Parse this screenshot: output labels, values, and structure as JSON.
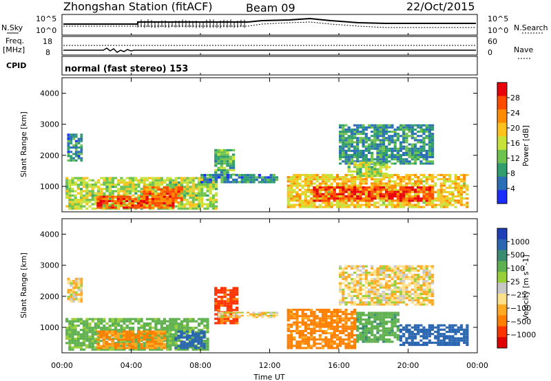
{
  "header": {
    "station": "Zhongshan Station (fitACF)",
    "beam": "Beam 09",
    "date": "22/Oct/2015"
  },
  "top_panels": {
    "nsky_label": "N.Sky",
    "nsearch_label": "N.Search",
    "freq_label_1": "Freq.",
    "freq_label_2": "[MHz]",
    "nave_label": "Nave",
    "cpid_label": "CPID",
    "cpid_text": "normal (fast stereo) 153",
    "noise_left_ticks": [
      "10^5",
      "10^0"
    ],
    "noise_right_ticks": [
      "10^5",
      "10^0"
    ],
    "freq_left_ticks": [
      "18",
      "8"
    ],
    "freq_right_ticks": [
      "60",
      "0"
    ]
  },
  "power_colorbar": {
    "label": "Power [dB]",
    "ticks": [
      "28",
      "24",
      "20",
      "16",
      "12",
      "8",
      "4"
    ],
    "colors": [
      "#e8000b",
      "#ff4a00",
      "#ff8c00",
      "#ffc21c",
      "#c8e23a",
      "#6ec24e",
      "#2f9d6e",
      "#2a6fb5",
      "#1a2dff"
    ]
  },
  "velocity_colorbar": {
    "label": "Velocity [m s^-1]",
    "ticks": [
      "1000",
      "500",
      "100",
      "25",
      "−25",
      "−100",
      "−500",
      "−1000"
    ],
    "colors": [
      "#1f3fb8",
      "#2a67b0",
      "#3a8c70",
      "#5fb04f",
      "#99d03a",
      "#c8c8c8",
      "#ffe08a",
      "#ffaa22",
      "#ff7f00",
      "#ff3300",
      "#e00000"
    ]
  },
  "axes": {
    "ylabel": "Slant Range [km]",
    "xlabel": "Time UT",
    "yticks": [
      "4000",
      "3000",
      "2000",
      "1000"
    ],
    "xticks": [
      "00:00",
      "04:00",
      "08:00",
      "12:00",
      "16:00",
      "20:00",
      "00:00"
    ]
  },
  "chart_data": [
    {
      "type": "heatmap",
      "title": "",
      "xlabel": "",
      "ylabel": "Slant Range [km]",
      "x_unit": "hours UT",
      "xlim": [
        0,
        24
      ],
      "ylim": [
        180,
        4500
      ],
      "colorbar": "Power [dB]",
      "regions": [
        {
          "t0": 0.2,
          "t1": 9.0,
          "r0": 250,
          "r1": 1300,
          "value": 14
        },
        {
          "t0": 0.3,
          "t1": 1.2,
          "r0": 1800,
          "r1": 2700,
          "value": 6
        },
        {
          "t0": 4.5,
          "t1": 7.0,
          "r0": 450,
          "r1": 1000,
          "value": 24
        },
        {
          "t0": 2.0,
          "t1": 6.5,
          "r0": 280,
          "r1": 700,
          "value": 26
        },
        {
          "t0": 8.8,
          "t1": 10.0,
          "r0": 1200,
          "r1": 2200,
          "value": 10
        },
        {
          "t0": 8.0,
          "t1": 12.5,
          "r0": 1100,
          "r1": 1400,
          "value": 6
        },
        {
          "t0": 13.0,
          "t1": 23.5,
          "r0": 300,
          "r1": 1400,
          "value": 18
        },
        {
          "t0": 14.5,
          "t1": 21.5,
          "r0": 500,
          "r1": 1000,
          "value": 27
        },
        {
          "t0": 16.0,
          "t1": 21.5,
          "r0": 1700,
          "r1": 3000,
          "value": 7
        },
        {
          "t0": 16.5,
          "t1": 19.0,
          "r0": 1300,
          "r1": 1800,
          "value": 14
        }
      ]
    },
    {
      "type": "heatmap",
      "title": "",
      "xlabel": "Time UT",
      "ylabel": "Slant Range [km]",
      "x_unit": "hours UT",
      "xlim": [
        0,
        24
      ],
      "ylim": [
        180,
        4500
      ],
      "colorbar": "Velocity [m s^-1]",
      "regions": [
        {
          "t0": 0.2,
          "t1": 8.5,
          "r0": 250,
          "r1": 1300,
          "value": 150
        },
        {
          "t0": 2.0,
          "t1": 6.0,
          "r0": 300,
          "r1": 900,
          "value": -120
        },
        {
          "t0": 6.5,
          "t1": 8.3,
          "r0": 300,
          "r1": 900,
          "value": 900
        },
        {
          "t0": 0.3,
          "t1": 1.2,
          "r0": 1800,
          "r1": 2600,
          "value": -10
        },
        {
          "t0": 8.8,
          "t1": 10.2,
          "r0": 1100,
          "r1": 2300,
          "value": -300
        },
        {
          "t0": 9.0,
          "t1": 12.5,
          "r0": 1300,
          "r1": 1500,
          "value": 0
        },
        {
          "t0": 13.0,
          "t1": 17.0,
          "r0": 300,
          "r1": 1600,
          "value": -150
        },
        {
          "t0": 17.0,
          "t1": 19.5,
          "r0": 500,
          "r1": 1500,
          "value": 200
        },
        {
          "t0": 19.5,
          "t1": 23.5,
          "r0": 400,
          "r1": 1100,
          "value": 800
        },
        {
          "t0": 16.0,
          "t1": 21.5,
          "r0": 1700,
          "r1": 3000,
          "value": 0
        }
      ]
    }
  ]
}
